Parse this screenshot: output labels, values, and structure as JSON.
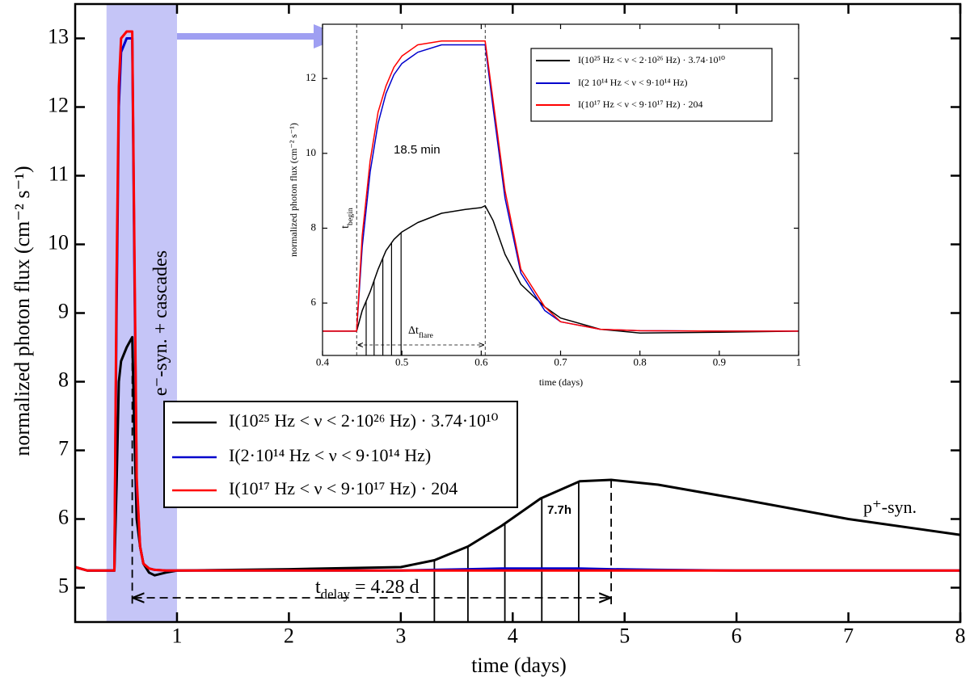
{
  "chart_data": [
    {
      "type": "line",
      "x_label": "time (days)",
      "y_label": "normalized photon flux (cm⁻² s⁻¹)",
      "xlim": [
        0.09,
        8
      ],
      "ylim": [
        4.5,
        13.5
      ],
      "xticks": [
        1,
        2,
        3,
        4,
        5,
        6,
        7,
        8
      ],
      "yticks": [
        5,
        6,
        7,
        8,
        9,
        10,
        11,
        12,
        13
      ],
      "highlight_xrange": [
        0.37,
        1
      ],
      "highlight_color": "#c5c5f7",
      "x": [
        0.09,
        0.2,
        0.44,
        0.46,
        0.48,
        0.5,
        0.55,
        0.6,
        0.62,
        0.64,
        0.67,
        0.7,
        0.75,
        0.8,
        0.9,
        1,
        2,
        3,
        3.3,
        3.6,
        3.9,
        4.25,
        4.6,
        4.88,
        5.3,
        6,
        7,
        8
      ],
      "series": [
        {
          "name": "I(10²⁵ Hz < ν < 2·10²⁶ Hz) · 3.74·10¹⁰",
          "color": "#000000",
          "values": [
            5.3,
            5.25,
            5.25,
            6.5,
            8,
            8.3,
            8.5,
            8.65,
            7.2,
            6.0,
            5.6,
            5.35,
            5.22,
            5.18,
            5.22,
            5.25,
            5.27,
            5.3,
            5.4,
            5.6,
            5.9,
            6.3,
            6.55,
            6.57,
            6.5,
            6.3,
            6.0,
            5.77
          ]
        },
        {
          "name": "I(2·10¹⁴ Hz < ν < 9·10¹⁴ Hz)",
          "color": "#0000cc",
          "values": [
            5.3,
            5.25,
            5.25,
            9,
            12,
            12.8,
            13.0,
            13.0,
            9.5,
            6.5,
            5.6,
            5.35,
            5.28,
            5.26,
            5.25,
            5.25,
            5.25,
            5.25,
            5.26,
            5.27,
            5.28,
            5.28,
            5.28,
            5.27,
            5.26,
            5.25,
            5.25,
            5.25
          ]
        },
        {
          "name": "I(10¹⁷ Hz < ν < 9·10¹⁷ Hz) · 204",
          "color": "#ff0000",
          "values": [
            5.3,
            5.25,
            5.25,
            9.5,
            12.3,
            13.0,
            13.1,
            13.1,
            9.8,
            6.6,
            5.6,
            5.35,
            5.28,
            5.26,
            5.25,
            5.25,
            5.25,
            5.25,
            5.25,
            5.25,
            5.25,
            5.25,
            5.25,
            5.25,
            5.25,
            5.25,
            5.25,
            5.25
          ]
        }
      ],
      "solid_vlines": [
        3.3,
        3.6,
        3.93,
        4.26,
        4.59
      ],
      "dashed_vlines": [
        0.6,
        4.88
      ],
      "annotations": [
        [
          {
            "text": "e⁻-syn. + cascades"
          }
        ],
        [
          {
            "text": "p⁺-syn."
          }
        ],
        [
          {
            "text": "7.7h"
          }
        ],
        [
          {
            "text": "t"
          },
          {
            "text": "delay",
            "sub": true
          },
          {
            "text": " = 4.28 d"
          }
        ]
      ]
    },
    {
      "type": "line",
      "x_label": "time (days)",
      "y_label": "normalized photon flux (cm⁻² s⁻¹)",
      "xlim": [
        0.4,
        1
      ],
      "ylim": [
        4.6,
        13.45
      ],
      "xticks": [
        0.4,
        0.5,
        0.6,
        0.7,
        0.8,
        0.9,
        1
      ],
      "yticks": [
        6,
        8,
        10,
        12
      ],
      "x": [
        0.4,
        0.443,
        0.45,
        0.46,
        0.47,
        0.48,
        0.49,
        0.5,
        0.52,
        0.55,
        0.58,
        0.6,
        0.605,
        0.615,
        0.63,
        0.65,
        0.68,
        0.7,
        0.75,
        0.8,
        0.9,
        1
      ],
      "series": [
        {
          "name": "I(10²⁵ Hz < ν < 2·10²⁶ Hz) · 3.74·10¹⁰",
          "color": "#000000",
          "values": [
            5.25,
            5.25,
            5.8,
            6.3,
            6.9,
            7.4,
            7.7,
            7.9,
            8.15,
            8.4,
            8.5,
            8.55,
            8.6,
            8.2,
            7.3,
            6.5,
            5.9,
            5.6,
            5.3,
            5.2,
            5.22,
            5.25
          ]
        },
        {
          "name": "I(2 10¹⁴ Hz < ν < 9·10¹⁴ Hz)",
          "color": "#0000cc",
          "values": [
            5.25,
            5.25,
            7.5,
            9.5,
            10.8,
            11.6,
            12.1,
            12.4,
            12.7,
            12.9,
            12.9,
            12.9,
            12.9,
            11.2,
            8.8,
            6.8,
            5.8,
            5.5,
            5.3,
            5.26,
            5.25,
            5.25
          ]
        },
        {
          "name": "I(10¹⁷ Hz < ν < 9·10¹⁷ Hz) · 204",
          "color": "#ff0000",
          "values": [
            5.25,
            5.25,
            7.8,
            9.8,
            11.1,
            11.8,
            12.3,
            12.6,
            12.9,
            13.0,
            13.0,
            13.0,
            13.0,
            11.4,
            9.0,
            6.9,
            5.9,
            5.5,
            5.3,
            5.26,
            5.25,
            5.25
          ]
        }
      ],
      "solid_vlines": [
        0.455,
        0.465,
        0.476,
        0.487,
        0.499
      ],
      "dashed_vlines": [
        0.443,
        0.605
      ],
      "annotations": [
        [
          {
            "text": "18.5 min"
          }
        ],
        [
          {
            "text": "t"
          },
          {
            "text": "begin",
            "sub": true
          }
        ],
        [
          {
            "text": "Δt"
          },
          {
            "text": "flare",
            "sub": true
          }
        ]
      ]
    }
  ]
}
